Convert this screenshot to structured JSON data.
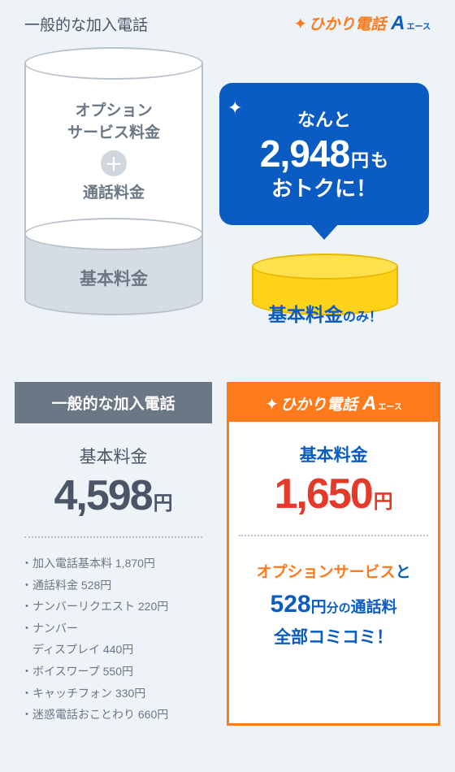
{
  "colors": {
    "bg": "#eef3f8",
    "gray_text": "#6b7785",
    "blue": "#0a5bc2",
    "orange": "#ff7a1a",
    "red": "#e43a2a",
    "yellow": "#ffd21a",
    "yellow_light": "#ffe14d",
    "cyl_border": "#b9c2cb",
    "cyl_lower": "#d5dce3"
  },
  "header": {
    "left_title": "一般的な加入電話",
    "brand_text": "ひかり電話",
    "brand_a": "A",
    "brand_a_sub": "エース"
  },
  "left_cylinder": {
    "upper_line1": "オプション",
    "upper_line2": "サービス料金",
    "upper_line3": "通話料金",
    "lower_label": "基本料金"
  },
  "bubble": {
    "line1": "なんと",
    "price": "2,948",
    "yen": "円",
    "mo": "も",
    "line3": "おトクに！"
  },
  "yellow_cyl": {
    "big": "基本料金",
    "small": "のみ！"
  },
  "card_left": {
    "header": "一般的な加入電話",
    "price_label": "基本料金",
    "price": "4,598",
    "yen": "円",
    "breakdown": [
      "加入電話基本料 1,870円",
      "通話料金 528円",
      "ナンバーリクエスト 220円",
      "ナンバー",
      "　ディスプレイ 440円",
      "ボイスワープ 550円",
      "キャッチフォン 330円",
      "迷惑電話おことわり 660円"
    ]
  },
  "card_right": {
    "price_label": "基本料金",
    "price": "1,650",
    "yen": "円",
    "promo_l1_a": "オプションサービス",
    "promo_l1_b": "と",
    "promo_l2_num": "528",
    "promo_l2_yen": "円",
    "promo_l2_small": "分の",
    "promo_l2_rest": "通話料",
    "promo_l3": "全部コミコミ！"
  }
}
